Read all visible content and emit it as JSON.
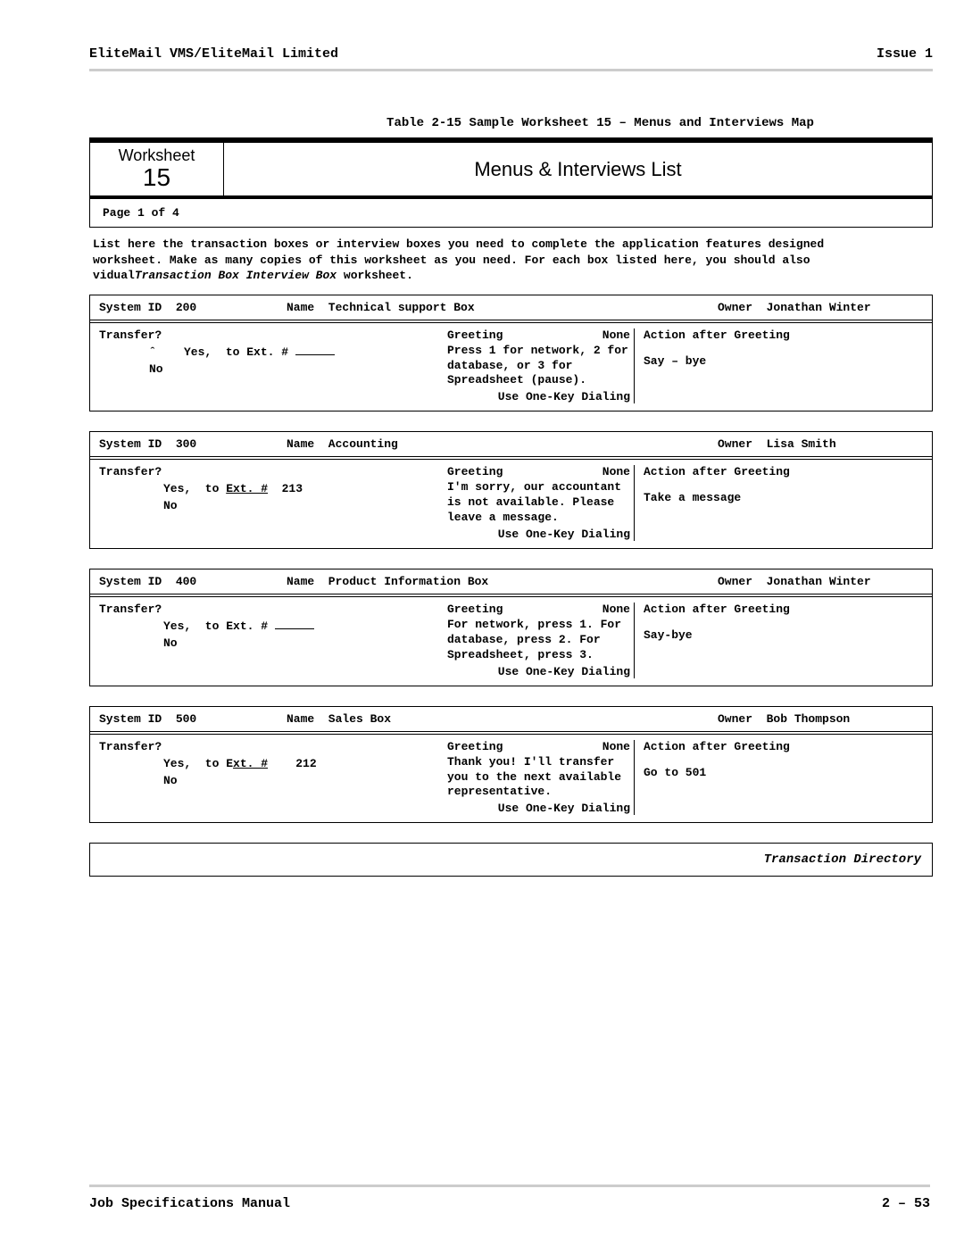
{
  "header": {
    "left": "EliteMail VMS/EliteMail Limited",
    "right": "Issue 1"
  },
  "caption": "Table 2-15  Sample Worksheet 15 – Menus and Interviews Map",
  "worksheet": {
    "label": "Worksheet",
    "number": "15",
    "title": "Menus & Interviews List",
    "page": "Page  1  of   4"
  },
  "instructions": {
    "l1": "List here the transaction boxes or interview boxes you need to complete the application features designed",
    "l2": "worksheet. Make as many copies of this worksheet as you need. For each box listed here, you should also",
    "l3a": "vidual",
    "l3b": "Transaction Box",
    "l3c": "Interview Box",
    "l3d": "worksheet."
  },
  "boxes": [
    {
      "sid_lbl": "System ID",
      "sid_val": "200",
      "nm_lbl": "Name",
      "nm_val": "Technical support Box",
      "own_lbl": "Owner",
      "own_val": "Jonathan Winter",
      "tr_title": "Transfer?",
      "yes_pre": "ˆ    Yes,  to Ext. # ",
      "yes_ext_underlined": false,
      "yes_blank": true,
      "yes_ext": "",
      "no": "No",
      "gr_lbl": "Greeting",
      "gr_none": "None",
      "gr_text": "Press 1 for network, 2 for database, or 3 for Spreadsheet (pause).",
      "gr_foot": "Use One-Key Dialing",
      "ac_title": "Action after Greeting",
      "ac_text": "Say – bye"
    },
    {
      "sid_lbl": "System ID",
      "sid_val": "300",
      "nm_lbl": "Name",
      "nm_val": "Accounting",
      "own_lbl": "Owner",
      "own_val": "Lisa Smith",
      "tr_title": "Transfer?",
      "yes_pre": "Yes,  to ",
      "yes_ext_underlined": true,
      "yes_blank": false,
      "yes_ext": "  213",
      "no": "No",
      "gr_lbl": "Greeting",
      "gr_none": "None",
      "gr_text": "I'm sorry, our accountant is not available.  Please leave a message.",
      "gr_foot": "Use One-Key Dialing",
      "ac_title": "Action after Greeting",
      "ac_text": "Take a message"
    },
    {
      "sid_lbl": "System ID",
      "sid_val": "400",
      "nm_lbl": "Name",
      "nm_val": "Product Information Box",
      "own_lbl": "Owner",
      "own_val": "Jonathan Winter",
      "tr_title": "Transfer?",
      "yes_pre": "Yes,  to Ext. # ",
      "yes_ext_underlined": false,
      "yes_blank": true,
      "yes_ext": "",
      "no": "No",
      "gr_lbl": "Greeting",
      "gr_none": "None",
      "gr_text": "For network, press 1. For database, press 2. For Spreadsheet, press 3.",
      "gr_foot": "Use One-Key Dialing",
      "ac_title": "Action after Greeting",
      "ac_text": "Say-bye"
    },
    {
      "sid_lbl": "System ID",
      "sid_val": "500",
      "nm_lbl": "Name",
      "nm_val": "Sales Box",
      "own_lbl": "Owner",
      "own_val": "Bob Thompson",
      "tr_title": "Transfer?",
      "yes_pre": "Yes,  to E",
      "yes_ext_underlined": true,
      "yes_blank": false,
      "yes_ext": "    212",
      "no": "No",
      "gr_lbl": "Greeting",
      "gr_none": "None",
      "gr_text": "Thank you!  I'll transfer you to the next available representative.",
      "gr_foot": "Use One-Key Dialing",
      "ac_title": "Action after Greeting",
      "ac_text": "Go to 501"
    }
  ],
  "ext_label": "Ext. #",
  "ext_label_short": "xt. #",
  "directory": "Transaction Directory",
  "footer": {
    "left": "Job Specifications Manual",
    "right": "2 – 53"
  }
}
